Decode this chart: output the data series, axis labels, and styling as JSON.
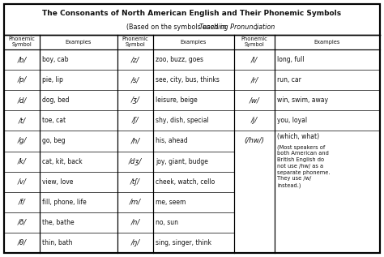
{
  "title1": "The Consonants of North American English and Their Phonemic Symbols",
  "title2_pre": "(Based on the symbols used in ",
  "title2_italic": "Teaching Pronunciation",
  "title2_post": ")",
  "col1_data": [
    [
      "/b/",
      "boy, cab"
    ],
    [
      "/p/",
      "pie, lip"
    ],
    [
      "/d/",
      "dog, bed"
    ],
    [
      "/t/",
      "toe, cat"
    ],
    [
      "/g/",
      "go, beg"
    ],
    [
      "/k/",
      "cat, kit, back"
    ],
    [
      "/v/",
      "view, love"
    ],
    [
      "/f/",
      "fill, phone, life"
    ],
    [
      "/ð/",
      "the, bathe"
    ],
    [
      "/θ/",
      "thin, bath"
    ]
  ],
  "col2_data": [
    [
      "/z/",
      "zoo, buzz, goes"
    ],
    [
      "/s/",
      "see, city, bus, thinks"
    ],
    [
      "/ʒ/",
      "leisure, beige"
    ],
    [
      "/ʃ/",
      "shy, dish, special"
    ],
    [
      "/h/",
      "his, ahead"
    ],
    [
      "/dʒ/",
      "joy, giant, budge"
    ],
    [
      "/tʃ/",
      "cheek, watch, cello"
    ],
    [
      "/m/",
      "me, seem"
    ],
    [
      "/n/",
      "no, sun"
    ],
    [
      "/ŋ/",
      "sing, singer, think"
    ]
  ],
  "col3_data": [
    [
      "/l/",
      "long, full"
    ],
    [
      "/r/",
      "run, car"
    ],
    [
      "/w/",
      "win, swim, away"
    ],
    [
      "/j/",
      "you, loyal"
    ],
    [
      "(/hw/)",
      "(which, what)"
    ],
    [
      "",
      ""
    ],
    [
      "",
      ""
    ],
    [
      "",
      ""
    ],
    [
      "",
      ""
    ],
    [
      "",
      ""
    ]
  ],
  "hw_note": "(Most speakers of\nboth American and\nBritish English do\nnot use /hw/ as a\nseparate phoneme.\nThey use /w/\ninstead.)",
  "text_color": "#111111",
  "border_color": "#000000"
}
